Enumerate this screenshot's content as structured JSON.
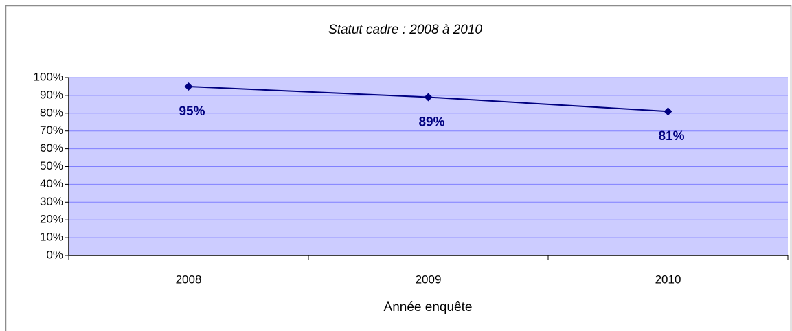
{
  "chart_data": {
    "type": "line",
    "title": "Statut cadre : 2008 à 2010",
    "x_label": "Année enquête",
    "categories": [
      "2008",
      "2009",
      "2010"
    ],
    "series": [
      {
        "name": "Statut cadre",
        "color": "#000080",
        "values": [
          95,
          89,
          81
        ],
        "value_labels": [
          "95%",
          "89%",
          "81%"
        ]
      }
    ],
    "ylim": [
      0,
      100
    ],
    "yticks": [
      {
        "value": 0,
        "label": "0%"
      },
      {
        "value": 10,
        "label": "10%"
      },
      {
        "value": 20,
        "label": "20%"
      },
      {
        "value": 30,
        "label": "30%"
      },
      {
        "value": 40,
        "label": "40%"
      },
      {
        "value": 50,
        "label": "50%"
      },
      {
        "value": 60,
        "label": "60%"
      },
      {
        "value": 70,
        "label": "70%"
      },
      {
        "value": 80,
        "label": "80%"
      },
      {
        "value": 90,
        "label": "90%"
      },
      {
        "value": 100,
        "label": "100%"
      }
    ],
    "grid": true
  }
}
